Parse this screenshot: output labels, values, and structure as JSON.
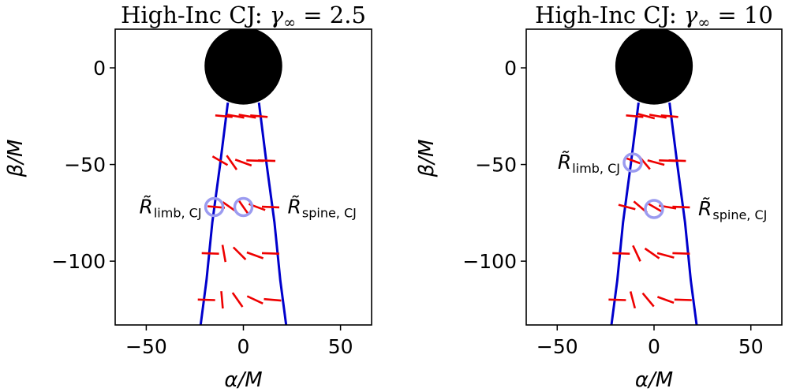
{
  "chart_data": [
    {
      "type": "scatter",
      "title": "High-Inc CJ: γ∞ = 2.5",
      "title_parts": {
        "prefix": "High-Inc CJ: ",
        "symbol": "γ",
        "subscript": "∞",
        "rhs": " = 2.5"
      },
      "xlabel": "α/M",
      "ylabel": "β/M",
      "xlim": [
        -66,
        66
      ],
      "ylim": [
        -133,
        20
      ],
      "xticks": [
        -50,
        0,
        50
      ],
      "yticks": [
        0,
        -50,
        -100
      ],
      "xtick_labels": [
        "−50",
        "0",
        "50"
      ],
      "ytick_labels": [
        "0",
        "−50",
        "−100"
      ],
      "colors": {
        "boundary": "#0000cc",
        "ticks": "#ee0000",
        "shadow": "#000000",
        "marker": "#9b9bf0"
      },
      "shadow": {
        "cx": 0,
        "cy": 1,
        "r": 20
      },
      "boundaries": [
        [
          [
            -8,
            -18
          ],
          [
            -12,
            -50
          ],
          [
            -16,
            -80
          ],
          [
            -19,
            -110
          ],
          [
            -22,
            -133
          ]
        ],
        [
          [
            8,
            -18
          ],
          [
            12,
            -50
          ],
          [
            16,
            -80
          ],
          [
            19,
            -110
          ],
          [
            22,
            -133
          ]
        ]
      ],
      "polarization_ticks": [
        {
          "x": -10,
          "y": -25,
          "angle": 85
        },
        {
          "x": -4,
          "y": -25,
          "angle": 80
        },
        {
          "x": 2,
          "y": -25,
          "angle": 80
        },
        {
          "x": 8,
          "y": -25,
          "angle": 85
        },
        {
          "x": -12,
          "y": -48,
          "angle": 60
        },
        {
          "x": -6,
          "y": -49,
          "angle": 35
        },
        {
          "x": 0,
          "y": -49,
          "angle": 70
        },
        {
          "x": 6,
          "y": -48,
          "angle": 88
        },
        {
          "x": 12,
          "y": -48,
          "angle": 88
        },
        {
          "x": -14,
          "y": -72,
          "angle": 85
        },
        {
          "x": -7,
          "y": -72,
          "angle": 55
        },
        {
          "x": 0,
          "y": -72,
          "angle": 35
        },
        {
          "x": 7,
          "y": -72,
          "angle": 70
        },
        {
          "x": 14,
          "y": -72,
          "angle": 88
        },
        {
          "x": -17,
          "y": -96,
          "angle": 88
        },
        {
          "x": -10,
          "y": -96,
          "angle": 10
        },
        {
          "x": -2,
          "y": -96,
          "angle": 45
        },
        {
          "x": 6,
          "y": -97,
          "angle": 70
        },
        {
          "x": 14,
          "y": -96,
          "angle": 88
        },
        {
          "x": -19,
          "y": -120,
          "angle": 88
        },
        {
          "x": -11,
          "y": -120,
          "angle": 5
        },
        {
          "x": -3,
          "y": -120,
          "angle": 35
        },
        {
          "x": 6,
          "y": -120,
          "angle": 65
        },
        {
          "x": 15,
          "y": -120,
          "angle": 85
        }
      ],
      "markers": [
        {
          "x": -15,
          "y": -72,
          "label_main": "R̃",
          "label_sub": "limb, CJ",
          "label_side": "left"
        },
        {
          "x": 0,
          "y": -72,
          "label_main": "R̃",
          "label_sub": "spine, CJ",
          "label_side": "right"
        }
      ]
    },
    {
      "type": "scatter",
      "title": "High-Inc CJ: γ∞ = 10",
      "title_parts": {
        "prefix": "High-Inc CJ: ",
        "symbol": "γ",
        "subscript": "∞",
        "rhs": " = 10"
      },
      "xlabel": "α/M",
      "ylabel": "β/M",
      "xlim": [
        -66,
        66
      ],
      "ylim": [
        -133,
        20
      ],
      "xticks": [
        -50,
        0,
        50
      ],
      "yticks": [
        0,
        -50,
        -100
      ],
      "xtick_labels": [
        "−50",
        "0",
        "50"
      ],
      "ytick_labels": [
        "0",
        "−50",
        "−100"
      ],
      "colors": {
        "boundary": "#0000cc",
        "ticks": "#ee0000",
        "shadow": "#000000",
        "marker": "#9b9bf0"
      },
      "shadow": {
        "cx": 0,
        "cy": 1,
        "r": 20
      },
      "boundaries": [
        [
          [
            -8,
            -18
          ],
          [
            -12,
            -50
          ],
          [
            -16,
            -80
          ],
          [
            -19,
            -110
          ],
          [
            -22,
            -133
          ]
        ],
        [
          [
            8,
            -18
          ],
          [
            12,
            -50
          ],
          [
            16,
            -80
          ],
          [
            19,
            -110
          ],
          [
            22,
            -133
          ]
        ]
      ],
      "polarization_ticks": [
        {
          "x": -10,
          "y": -25,
          "angle": 85
        },
        {
          "x": -4,
          "y": -25,
          "angle": 75
        },
        {
          "x": 2,
          "y": -25,
          "angle": 80
        },
        {
          "x": 8,
          "y": -25,
          "angle": 85
        },
        {
          "x": -11,
          "y": -48,
          "angle": 70
        },
        {
          "x": -5,
          "y": -49,
          "angle": 40
        },
        {
          "x": 1,
          "y": -49,
          "angle": 75
        },
        {
          "x": 7,
          "y": -48,
          "angle": 88
        },
        {
          "x": 12,
          "y": -48,
          "angle": 88
        },
        {
          "x": -14,
          "y": -72,
          "angle": 75
        },
        {
          "x": -7,
          "y": -72,
          "angle": 50
        },
        {
          "x": 0,
          "y": -72,
          "angle": 60
        },
        {
          "x": 7,
          "y": -72,
          "angle": 80
        },
        {
          "x": 14,
          "y": -72,
          "angle": 88
        },
        {
          "x": -17,
          "y": -96,
          "angle": 88
        },
        {
          "x": -9,
          "y": -96,
          "angle": 25
        },
        {
          "x": -1,
          "y": -96,
          "angle": 55
        },
        {
          "x": 6,
          "y": -97,
          "angle": 75
        },
        {
          "x": 14,
          "y": -96,
          "angle": 88
        },
        {
          "x": -19,
          "y": -120,
          "angle": 88
        },
        {
          "x": -11,
          "y": -120,
          "angle": 15
        },
        {
          "x": -3,
          "y": -120,
          "angle": 40
        },
        {
          "x": 6,
          "y": -120,
          "angle": 70
        },
        {
          "x": 15,
          "y": -120,
          "angle": 88
        }
      ],
      "markers": [
        {
          "x": -11,
          "y": -49,
          "label_main": "R̃",
          "label_sub": "limb, CJ",
          "label_side": "left"
        },
        {
          "x": 0,
          "y": -73,
          "label_main": "R̃",
          "label_sub": "spine, CJ",
          "label_side": "right"
        }
      ]
    }
  ]
}
